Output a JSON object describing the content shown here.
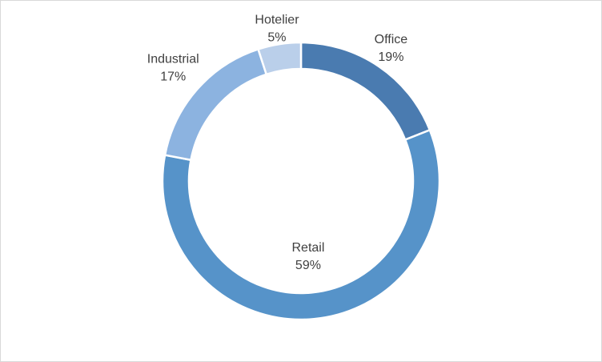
{
  "chart_data": {
    "type": "donut",
    "categories": [
      "Office",
      "Retail",
      "Industrial",
      "Hotelier"
    ],
    "values": [
      19,
      59,
      17,
      5
    ],
    "value_labels": [
      "19%",
      "59%",
      "17%",
      "5%"
    ],
    "colors": [
      "#4a7bb0",
      "#5693c9",
      "#8cb3e0",
      "#bacfea"
    ]
  }
}
